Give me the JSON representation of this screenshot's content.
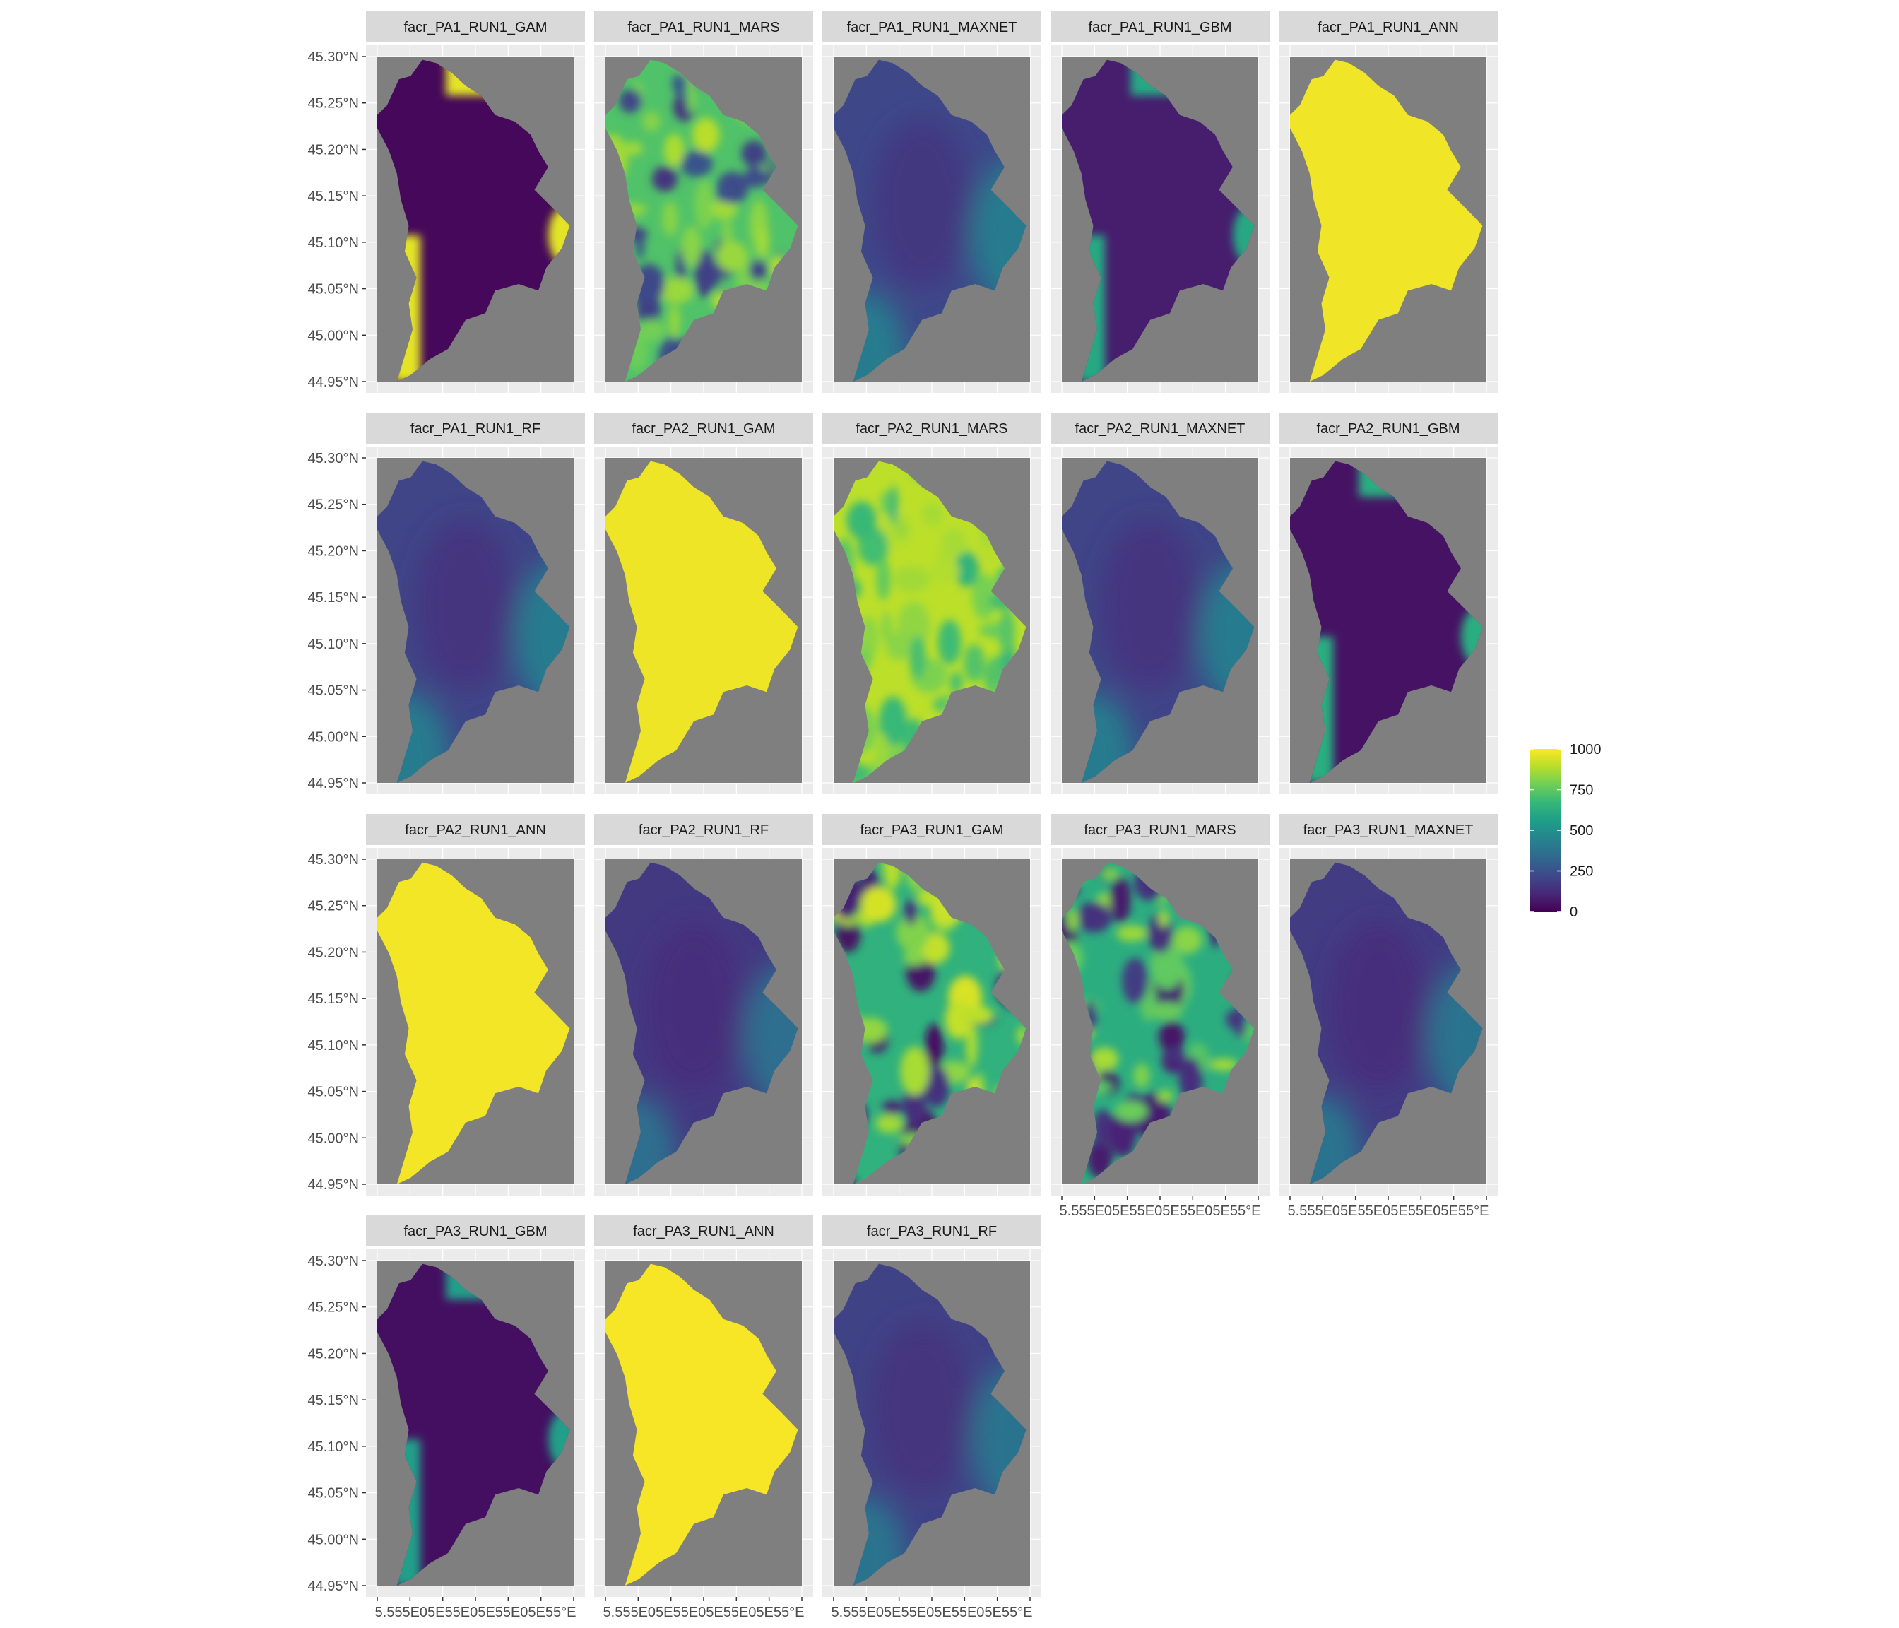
{
  "chart_data": {
    "type": "heatmap",
    "layout": "faceted-map-grid",
    "facets": [
      {
        "label": "facr_PA1_RUN1_GAM",
        "pattern": "low-edges-high",
        "base": 20,
        "edge": 960
      },
      {
        "label": "facr_PA1_RUN1_MARS",
        "pattern": "mixed",
        "base": 720,
        "edge": 900,
        "low": 150
      },
      {
        "label": "facr_PA1_RUN1_MAXNET",
        "pattern": "smooth",
        "base": 220,
        "edge": 420
      },
      {
        "label": "facr_PA1_RUN1_GBM",
        "pattern": "low-edges-mid",
        "base": 80,
        "edge": 600
      },
      {
        "label": "facr_PA1_RUN1_ANN",
        "pattern": "uniform-high",
        "base": 980
      },
      {
        "label": "facr_PA1_RUN1_RF",
        "pattern": "smooth",
        "base": 210,
        "edge": 420
      },
      {
        "label": "facr_PA2_RUN1_GAM",
        "pattern": "uniform-high",
        "base": 975
      },
      {
        "label": "facr_PA2_RUN1_MARS",
        "pattern": "high-mixed",
        "base": 900,
        "low": 650
      },
      {
        "label": "facr_PA2_RUN1_MAXNET",
        "pattern": "smooth",
        "base": 210,
        "edge": 420
      },
      {
        "label": "facr_PA2_RUN1_GBM",
        "pattern": "low-edges-mid",
        "base": 50,
        "edge": 620
      },
      {
        "label": "facr_PA2_RUN1_ANN",
        "pattern": "uniform-high",
        "base": 985
      },
      {
        "label": "facr_PA2_RUN1_RF",
        "pattern": "smooth",
        "base": 170,
        "edge": 360
      },
      {
        "label": "facr_PA3_RUN1_GAM",
        "pattern": "mixed",
        "base": 640,
        "edge": 950,
        "low": 40
      },
      {
        "label": "facr_PA3_RUN1_MARS",
        "pattern": "mixed",
        "base": 620,
        "edge": 880,
        "low": 60
      },
      {
        "label": "facr_PA3_RUN1_MAXNET",
        "pattern": "smooth",
        "base": 180,
        "edge": 380
      },
      {
        "label": "facr_PA3_RUN1_GBM",
        "pattern": "low-edges-mid",
        "base": 40,
        "edge": 560
      },
      {
        "label": "facr_PA3_RUN1_ANN",
        "pattern": "uniform-high",
        "base": 990
      },
      {
        "label": "facr_PA3_RUN1_RF",
        "pattern": "smooth",
        "base": 200,
        "edge": 380
      }
    ],
    "y_ticks": [
      "45.30°N",
      "45.25°N",
      "45.20°N",
      "45.15°N",
      "45.10°N",
      "45.05°N",
      "45.00°N",
      "44.95°N"
    ],
    "x_ticks": [
      "5.55°E",
      "5.60°E",
      "5.65°E",
      "5.70°E",
      "5.75°E",
      "5.80°E",
      "5.85°E"
    ],
    "x_label_display": "5.555E05E55E05E55E05E55°E",
    "ylim": [
      44.95,
      45.3
    ],
    "legend": {
      "title": "",
      "placement": "right",
      "ticks": [
        1000,
        750,
        500,
        250,
        0
      ],
      "range": [
        0,
        1000
      ],
      "colormap": "viridis"
    },
    "colors": {
      "panel_bg": "#ebebeb",
      "map_bg": "#7f7f7f",
      "strip_bg": "#d9d9d9",
      "grid": "#ffffff",
      "viridis": [
        "#440154",
        "#482878",
        "#3e4989",
        "#31688e",
        "#26828e",
        "#1f9e89",
        "#35b779",
        "#6ece58",
        "#b5de2b",
        "#fde725"
      ]
    }
  }
}
